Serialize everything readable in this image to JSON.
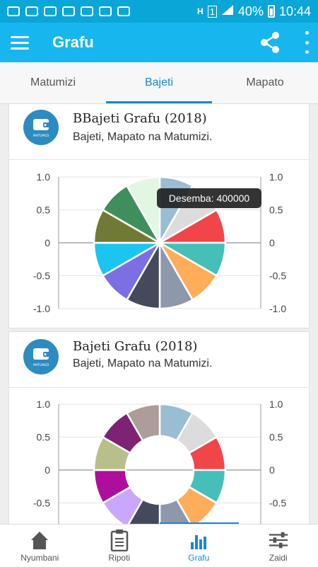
{
  "status_bar": {
    "signal": "H",
    "sim": "1",
    "battery": "40%",
    "time": "10:44"
  },
  "app_bar": {
    "title": "Grafu",
    "menu_icon": "hamburger-menu-icon",
    "share_icon": "share-icon",
    "more_icon": "more-vert-icon"
  },
  "tabs": [
    {
      "label": "Matumizi",
      "active": false
    },
    {
      "label": "Bajeti",
      "active": true
    },
    {
      "label": "Mapato",
      "active": false
    }
  ],
  "cards": [
    {
      "title": "BBajeti Grafu (2018)",
      "subtitle": "Bajeti, Mapato na Matumizi.",
      "avatar_label": "MATUMIZI"
    },
    {
      "title": "Bajeti Grafu (2018)",
      "subtitle": "Bajeti, Mapato na Matumizi.",
      "avatar_label": "MATUMIZI"
    }
  ],
  "bottom_nav": [
    {
      "label": "Nyumbani",
      "icon": "home-icon",
      "active": false
    },
    {
      "label": "Ripoti",
      "icon": "clipboard-icon",
      "active": false
    },
    {
      "label": "Grafu",
      "icon": "bar-chart-icon",
      "active": true
    },
    {
      "label": "Zaidi",
      "icon": "sliders-icon",
      "active": false
    }
  ],
  "colors": {
    "status_bar": "#0aa6d8",
    "app_bar": "#18b6ef",
    "accent": "#1987d6"
  },
  "chart_data": [
    {
      "type": "pie",
      "categories": [
        "",
        "",
        "",
        "",
        "",
        "",
        "",
        "",
        "",
        "",
        "",
        "Desemba"
      ],
      "values": [
        1,
        1,
        1,
        1,
        1,
        1,
        1,
        1,
        1,
        1,
        1,
        1
      ],
      "colors": [
        "#99bdd2",
        "#dcdcdc",
        "#f0464a",
        "#46bfb8",
        "#ffad5a",
        "#8f97ab",
        "#444a5c",
        "#7b6fe3",
        "#1cc4f0",
        "#717a35",
        "#3f8f5c",
        "#e1f7e3"
      ],
      "tooltip": "Desemba: 400000",
      "y_ticks": [
        "1.0",
        "0.5",
        "0",
        "-0.5",
        "-1.0"
      ],
      "ylim": [
        -1,
        1
      ]
    },
    {
      "type": "pie",
      "donut": true,
      "categories": [
        "",
        "",
        "",
        "",
        "",
        "",
        "",
        "",
        "",
        "",
        "",
        ""
      ],
      "values": [
        1,
        1,
        1,
        1,
        1,
        1,
        1,
        1,
        1,
        1,
        1,
        1
      ],
      "colors": [
        "#99bdd2",
        "#dcdcdc",
        "#f0464a",
        "#46bfb8",
        "#ffad5a",
        "#8f97ab",
        "#444a5c",
        "#c9a7ff",
        "#ad0f9c",
        "#b8bf8a",
        "#7e2273",
        "#ad9c97"
      ],
      "y_ticks": [
        "1.0",
        "0.5",
        "0",
        "-0.5"
      ],
      "ylim": [
        -1,
        1
      ]
    }
  ]
}
